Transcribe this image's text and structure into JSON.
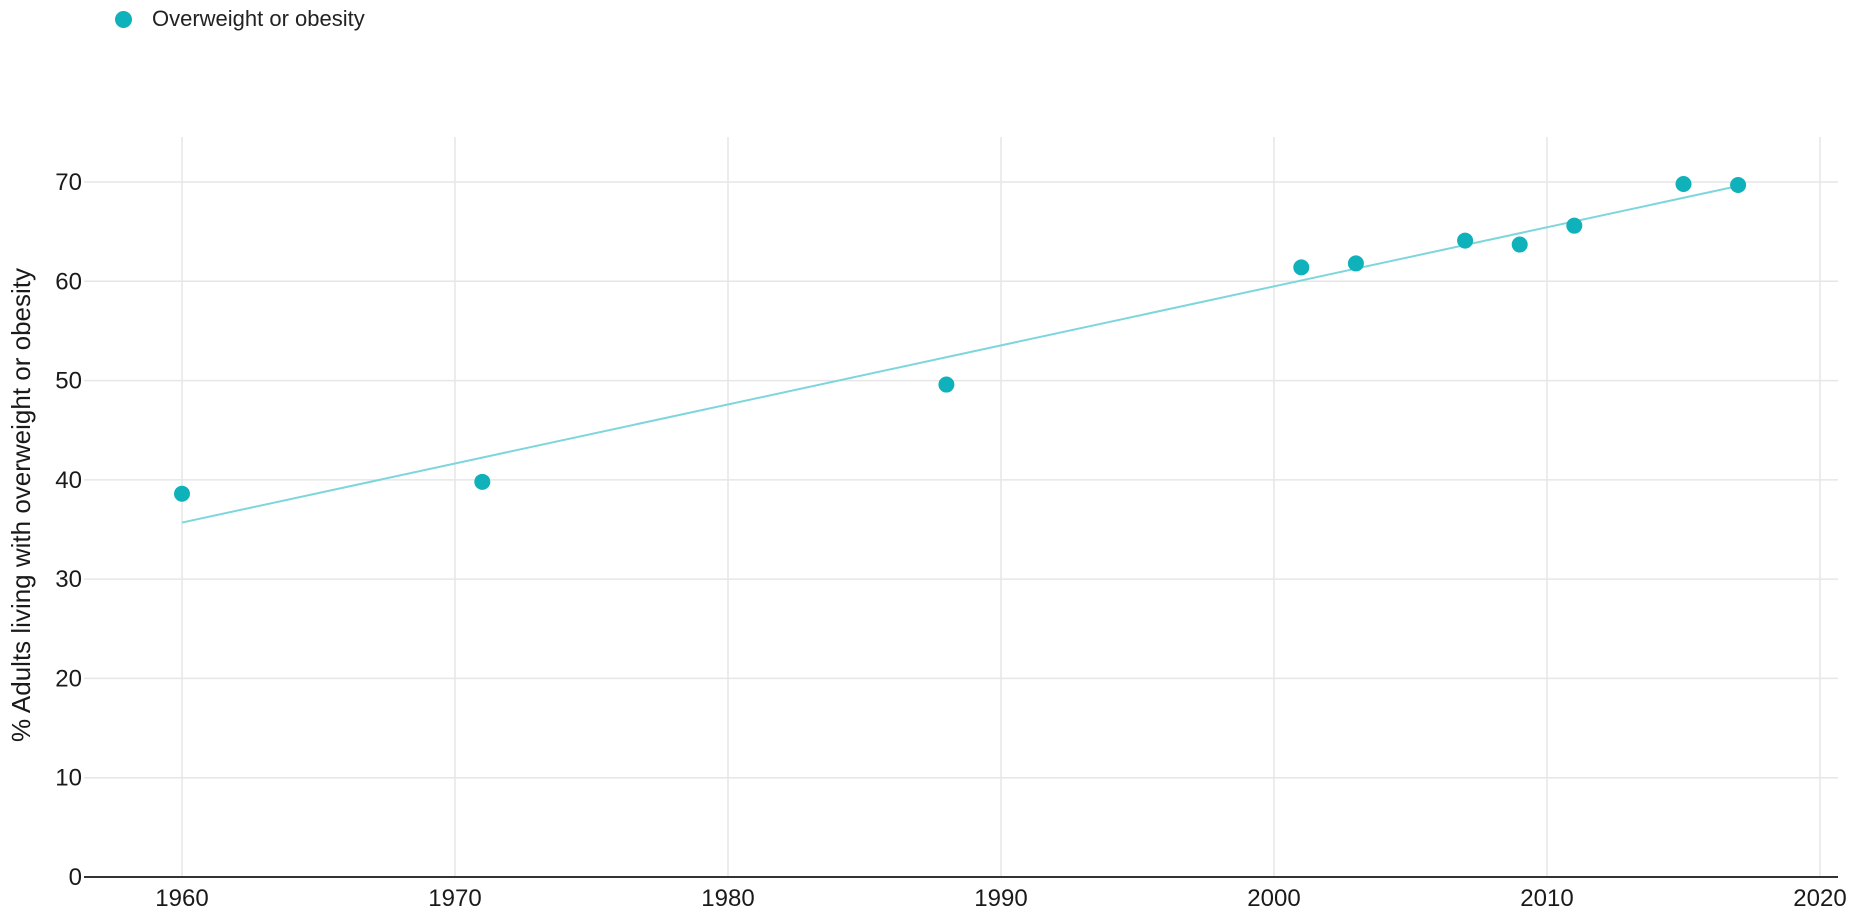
{
  "chart_data": {
    "type": "scatter",
    "title": "",
    "xlabel": "",
    "ylabel": "% Adults living with overweight or obesity",
    "xlim": [
      1957,
      2021
    ],
    "ylim": [
      0,
      75
    ],
    "x_ticks": [
      "1960",
      "1970",
      "1980",
      "1990",
      "2000",
      "2010",
      "2020"
    ],
    "y_ticks": [
      "0",
      "10",
      "20",
      "30",
      "40",
      "50",
      "60",
      "70"
    ],
    "grid": true,
    "legend_position": "top-left",
    "series": [
      {
        "name": "Overweight or obesity",
        "color": "#0fb1ba",
        "x": [
          1960,
          1971,
          1988,
          2001,
          2003,
          2007,
          2009,
          2011,
          2015,
          2017
        ],
        "y": [
          38.6,
          39.8,
          49.6,
          61.4,
          61.8,
          64.1,
          63.7,
          65.6,
          69.8,
          69.7
        ]
      }
    ],
    "trendline": {
      "color": "#7dd6dc",
      "x": [
        1960,
        2017
      ],
      "y": [
        35.7,
        69.6
      ]
    }
  }
}
